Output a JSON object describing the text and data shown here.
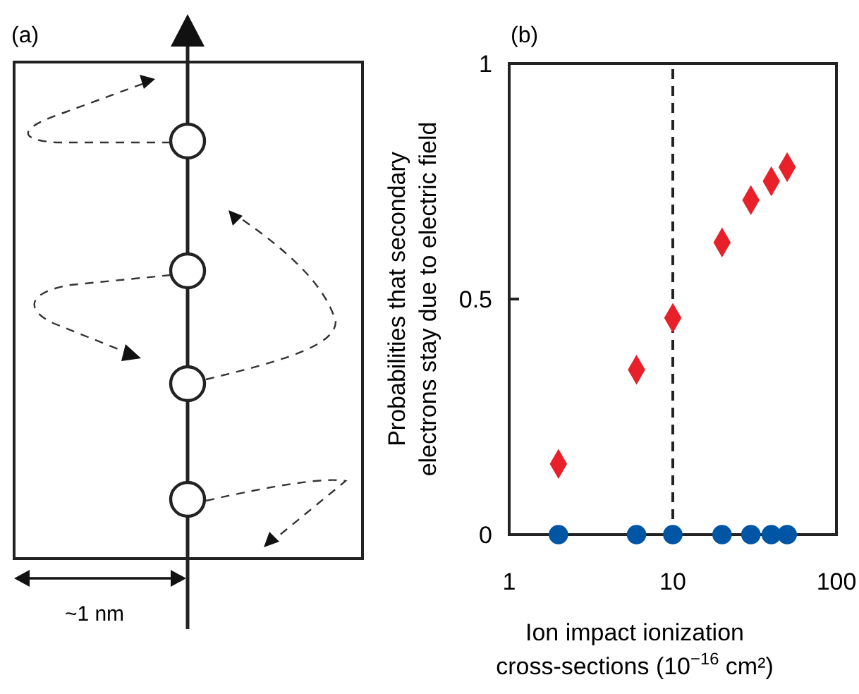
{
  "chart_data": [
    {
      "type": "other",
      "title": "(a)",
      "annotations": [
        "~1 nm"
      ]
    },
    {
      "type": "scatter",
      "title": "(b)",
      "xlabel": "Ion impact ionization cross-sections (10$^{−16}$ cm²)",
      "ylabel": "Probabilities that secondary electrons stay due to electric field",
      "log": "x",
      "xlim": [
        1,
        100
      ],
      "xticks": [
        1,
        10,
        100
      ],
      "ylim": [
        0,
        1
      ],
      "yticks": [
        0,
        0.5,
        1
      ],
      "series": [
        {
          "color": "#e8202a",
          "marker": "diamond",
          "x": [
            2,
            6,
            10,
            20,
            30,
            40,
            50
          ],
          "values": [
            0.15,
            0.35,
            0.46,
            0.62,
            0.71,
            0.75,
            0.78
          ]
        },
        {
          "color": "#0055a5",
          "marker": "circle",
          "x": [
            2,
            6,
            10,
            20,
            30,
            40,
            50
          ],
          "values": [
            0,
            0,
            0,
            0,
            0,
            0,
            0
          ]
        }
      ],
      "ref_lines": [
        {
          "axis": "x",
          "value": 10,
          "line_style": "dashed",
          "color": "#222222"
        }
      ]
    }
  ]
}
